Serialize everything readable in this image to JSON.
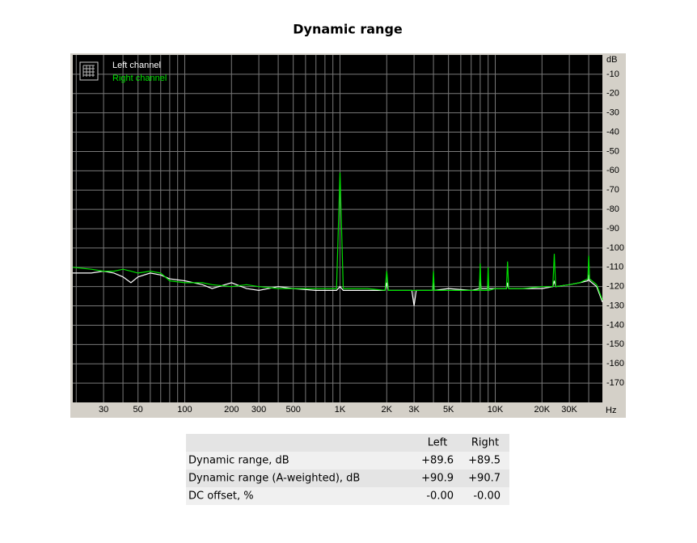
{
  "chart_data": {
    "type": "line",
    "title": "Dynamic range",
    "x_label": "Hz",
    "y_label": "dB",
    "xscale": "log",
    "xlim": [
      19,
      49000
    ],
    "ylim": [
      -180,
      0
    ],
    "xticks": [
      30,
      50,
      100,
      200,
      300,
      500,
      {
        "value": 1000,
        "label": "1K"
      },
      {
        "value": 2000,
        "label": "2K"
      },
      {
        "value": 3000,
        "label": "3K"
      },
      {
        "value": 5000,
        "label": "5K"
      },
      {
        "value": 10000,
        "label": "10K"
      },
      {
        "value": 20000,
        "label": "20K"
      },
      {
        "value": 30000,
        "label": "30K"
      }
    ],
    "xgrid": [
      20,
      30,
      40,
      50,
      60,
      70,
      80,
      90,
      100,
      200,
      300,
      400,
      500,
      600,
      700,
      800,
      900,
      1000,
      2000,
      3000,
      4000,
      5000,
      6000,
      7000,
      8000,
      9000,
      10000,
      20000,
      30000,
      40000
    ],
    "yticks": [
      -10,
      -20,
      -30,
      -40,
      -50,
      -60,
      -70,
      -80,
      -90,
      -100,
      -110,
      -120,
      -130,
      -140,
      -150,
      -160,
      -170
    ],
    "grid": true,
    "legend": "top-left",
    "x": [
      19,
      25,
      30,
      35,
      40,
      45,
      50,
      60,
      70,
      80,
      100,
      130,
      150,
      200,
      250,
      300,
      400,
      500,
      700,
      950,
      1000,
      1050,
      1500,
      1950,
      2000,
      2050,
      2900,
      3000,
      3100,
      3950,
      4000,
      4050,
      5000,
      7000,
      7900,
      8000,
      8100,
      8900,
      9000,
      9100,
      10000,
      11800,
      12000,
      12200,
      15000,
      20000,
      23500,
      24000,
      24500,
      30000,
      35000,
      39500,
      40000,
      40500,
      45000,
      49000
    ],
    "series": [
      {
        "name": "Left channel",
        "color": "#ffffff",
        "values": [
          -113,
          -113,
          -112,
          -113,
          -115,
          -118,
          -115,
          -113,
          -114,
          -116,
          -117,
          -119,
          -121,
          -118,
          -121,
          -122,
          -120,
          -121,
          -122,
          -122,
          -120,
          -122,
          -122,
          -122,
          -118,
          -122,
          -122,
          -130,
          -122,
          -122,
          -117,
          -122,
          -121,
          -122,
          -121,
          -116,
          -121,
          -121,
          -120,
          -121,
          -121,
          -121,
          -118,
          -121,
          -121,
          -121,
          -120,
          -117,
          -120,
          -119,
          -118,
          -117,
          -114,
          -117,
          -120,
          -128
        ]
      },
      {
        "name": "Right channel",
        "color": "#00e000",
        "values": [
          -110,
          -111,
          -112,
          -112,
          -111,
          -112,
          -113,
          -112,
          -113,
          -117,
          -118,
          -118,
          -119,
          -120,
          -119,
          -120,
          -121,
          -121,
          -121,
          -121,
          -61,
          -121,
          -121,
          -122,
          -112,
          -122,
          -122,
          -122,
          -122,
          -122,
          -112,
          -122,
          -122,
          -122,
          -122,
          -108,
          -122,
          -122,
          -110,
          -122,
          -121,
          -121,
          -107,
          -121,
          -121,
          -120,
          -120,
          -103,
          -120,
          -119,
          -118,
          -116,
          -104,
          -116,
          -119,
          -127
        ]
      }
    ]
  },
  "table": {
    "columns": [
      "Left",
      "Right"
    ],
    "rows": [
      [
        "Dynamic range, dB",
        "+89.6",
        "+89.5"
      ],
      [
        "Dynamic range (A-weighted), dB",
        "+90.9",
        "+90.7"
      ],
      [
        "DC offset, %",
        "-0.00",
        "-0.00"
      ]
    ]
  }
}
